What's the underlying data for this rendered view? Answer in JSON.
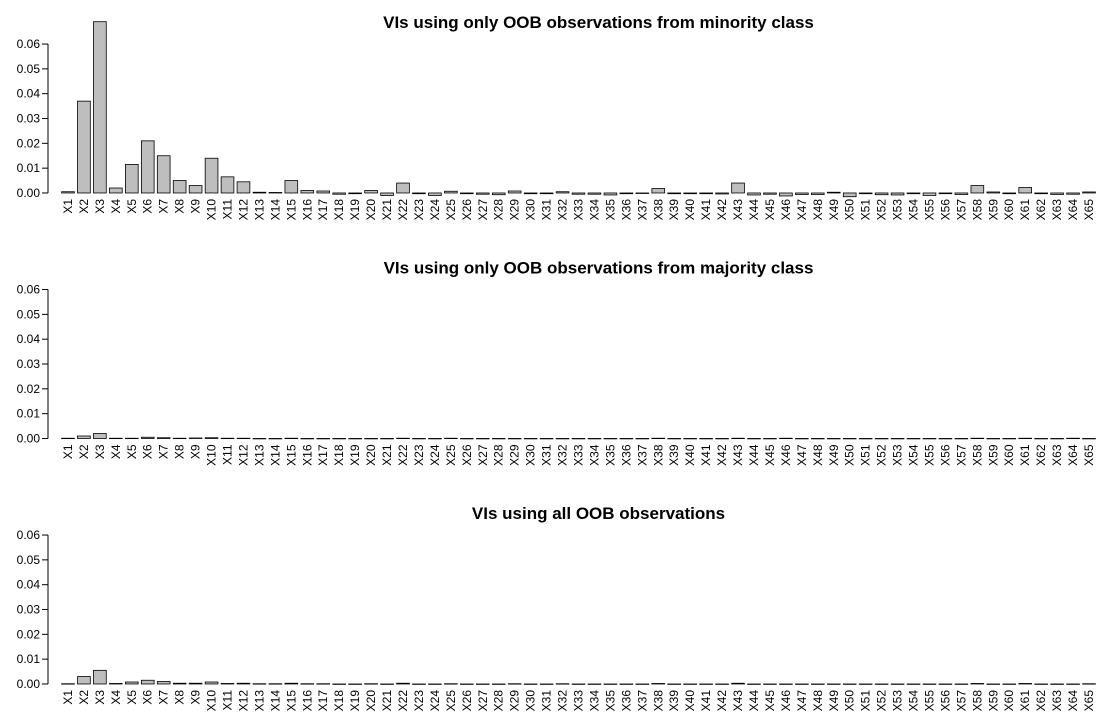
{
  "chart_data": [
    {
      "type": "bar",
      "title": "VIs using only OOB observations from minority class",
      "categories": [
        "X1",
        "X2",
        "X3",
        "X4",
        "X5",
        "X6",
        "X7",
        "X8",
        "X9",
        "X10",
        "X11",
        "X12",
        "X13",
        "X14",
        "X15",
        "X16",
        "X17",
        "X18",
        "X19",
        "X20",
        "X21",
        "X22",
        "X23",
        "X24",
        "X25",
        "X26",
        "X27",
        "X28",
        "X29",
        "X30",
        "X31",
        "X32",
        "X33",
        "X34",
        "X35",
        "X36",
        "X37",
        "X38",
        "X39",
        "X40",
        "X41",
        "X42",
        "X43",
        "X44",
        "X45",
        "X46",
        "X47",
        "X48",
        "X49",
        "X50",
        "X51",
        "X52",
        "X53",
        "X54",
        "X55",
        "X56",
        "X57",
        "X58",
        "X59",
        "X60",
        "X61",
        "X62",
        "X63",
        "X64",
        "X65"
      ],
      "values": [
        0.0005,
        0.037,
        0.069,
        0.002,
        0.0115,
        0.021,
        0.015,
        0.005,
        0.003,
        0.014,
        0.0065,
        0.0045,
        0.0003,
        0.0002,
        0.005,
        0.001,
        0.0008,
        -0.0005,
        -0.0003,
        0.001,
        -0.001,
        0.004,
        -0.0003,
        -0.001,
        0.0007,
        -0.0003,
        -0.0005,
        -0.0007,
        0.0008,
        -0.0003,
        -0.0003,
        0.0005,
        -0.0005,
        -0.0005,
        -0.0008,
        -0.0003,
        -0.0002,
        0.0018,
        -0.0003,
        -0.0003,
        -0.0003,
        -0.0004,
        0.004,
        -0.0008,
        -0.0005,
        -0.0012,
        -0.0006,
        -0.0006,
        0.0003,
        -0.0015,
        -0.0003,
        -0.0007,
        -0.0008,
        -0.0003,
        -0.001,
        -0.0003,
        -0.0006,
        0.003,
        0.0004,
        -0.0003,
        0.0022,
        -0.0003,
        -0.0006,
        -0.0005,
        0.0004
      ],
      "color": "#bebebe",
      "ylim": [
        -0.0015,
        0.069
      ],
      "yticks": [
        {
          "value": 0,
          "label": "0.00"
        },
        0.01,
        0.02,
        0.03,
        0.04,
        0.05,
        0.06
      ]
    },
    {
      "type": "bar",
      "title": "VIs using only OOB observations from majority class",
      "categories": [
        "X1",
        "X2",
        "X3",
        "X4",
        "X5",
        "X6",
        "X7",
        "X8",
        "X9",
        "X10",
        "X11",
        "X12",
        "X13",
        "X14",
        "X15",
        "X16",
        "X17",
        "X18",
        "X19",
        "X20",
        "X21",
        "X22",
        "X23",
        "X24",
        "X25",
        "X26",
        "X27",
        "X28",
        "X29",
        "X30",
        "X31",
        "X32",
        "X33",
        "X34",
        "X35",
        "X36",
        "X37",
        "X38",
        "X39",
        "X40",
        "X41",
        "X42",
        "X43",
        "X44",
        "X45",
        "X46",
        "X47",
        "X48",
        "X49",
        "X50",
        "X51",
        "X52",
        "X53",
        "X54",
        "X55",
        "X56",
        "X57",
        "X58",
        "X59",
        "X60",
        "X61",
        "X62",
        "X63",
        "X64",
        "X65"
      ],
      "values": [
        0.0001,
        0.001,
        0.002,
        0.0001,
        0.0001,
        0.0005,
        0.0003,
        0.0001,
        0.0002,
        0.0003,
        0.0001,
        0.0001,
        0,
        0,
        0.0001,
        0,
        0,
        0,
        0,
        0,
        0,
        0.0001,
        0,
        0,
        0.0001,
        0,
        0,
        0,
        0,
        0,
        0,
        0,
        0,
        0,
        0,
        0,
        0,
        0.0001,
        0,
        0,
        0,
        0,
        0.0001,
        0,
        0,
        0.0001,
        0,
        0,
        0,
        0,
        0,
        0,
        0,
        0,
        0,
        0,
        0,
        0.0001,
        0,
        0,
        0.0001,
        0,
        0,
        0.0001,
        0
      ],
      "color": "#bebebe",
      "ylim": [
        -0.0015,
        0.069
      ],
      "yticks": [
        {
          "value": 0,
          "label": "0.00"
        },
        0.01,
        0.02,
        0.03,
        0.04,
        0.05,
        0.06
      ]
    },
    {
      "type": "bar",
      "title": "VIs using all OOB observations",
      "categories": [
        "X1",
        "X2",
        "X3",
        "X4",
        "X5",
        "X6",
        "X7",
        "X8",
        "X9",
        "X10",
        "X11",
        "X12",
        "X13",
        "X14",
        "X15",
        "X16",
        "X17",
        "X18",
        "X19",
        "X20",
        "X21",
        "X22",
        "X23",
        "X24",
        "X25",
        "X26",
        "X27",
        "X28",
        "X29",
        "X30",
        "X31",
        "X32",
        "X33",
        "X34",
        "X35",
        "X36",
        "X37",
        "X38",
        "X39",
        "X40",
        "X41",
        "X42",
        "X43",
        "X44",
        "X45",
        "X46",
        "X47",
        "X48",
        "X49",
        "X50",
        "X51",
        "X52",
        "X53",
        "X54",
        "X55",
        "X56",
        "X57",
        "X58",
        "X59",
        "X60",
        "X61",
        "X62",
        "X63",
        "X64",
        "X65"
      ],
      "values": [
        0.0001,
        0.003,
        0.0055,
        0.0002,
        0.0008,
        0.0015,
        0.001,
        0.0003,
        0.0003,
        0.0008,
        0.0002,
        0.0003,
        0.0001,
        0.0001,
        0.0003,
        0.0001,
        0.0001,
        0,
        0,
        0.0001,
        0,
        0.0003,
        0,
        0,
        0.0001,
        0,
        0,
        0,
        0.0001,
        0,
        0,
        0.0001,
        0,
        0,
        0,
        0,
        0,
        0.0002,
        0,
        0,
        0,
        0,
        0.0003,
        0,
        0,
        0,
        0,
        0,
        0,
        0,
        0,
        0,
        0,
        0,
        0,
        0,
        0,
        0.0002,
        0,
        0,
        0.0002,
        0,
        0,
        0,
        0.0001
      ],
      "color": "#bebebe",
      "ylim": [
        -0.0015,
        0.069
      ],
      "yticks": [
        {
          "value": 0,
          "label": "0.00"
        },
        0.01,
        0.02,
        0.03,
        0.04,
        0.05,
        0.06
      ]
    }
  ]
}
